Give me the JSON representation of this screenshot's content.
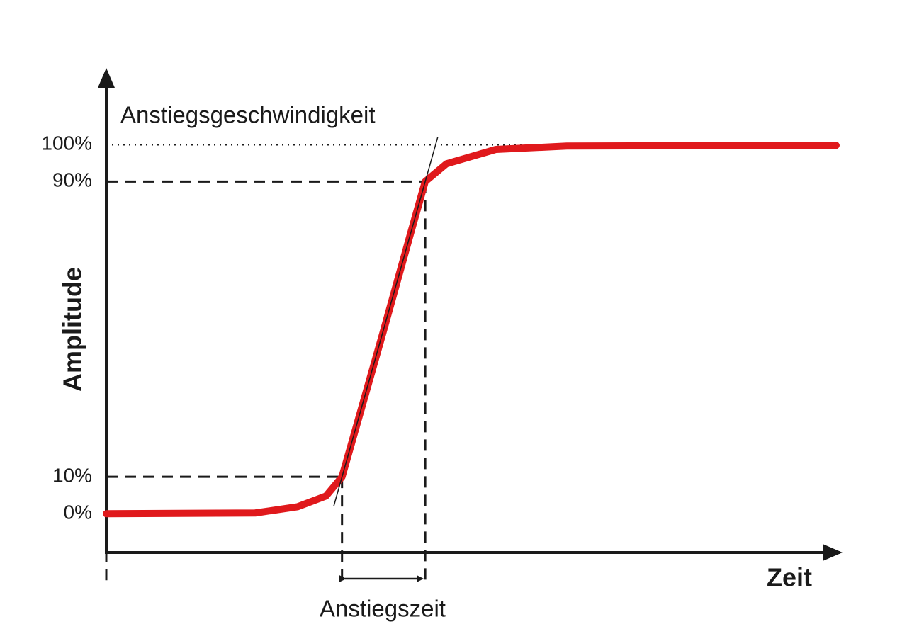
{
  "chart_data": {
    "type": "line",
    "x_label": "Zeit",
    "y_label": "Amplitude",
    "annotations": [
      "Anstiegsgeschwindigkeit",
      "Anstiegszeit"
    ],
    "x": [
      0,
      20.4,
      26.2,
      30.1,
      32.3,
      37.9,
      41.7,
      43.7,
      46.6,
      53.4,
      63.1,
      100
    ],
    "series": [
      {
        "color": "#e0191c",
        "values": [
          0,
          0.2,
          1.9,
          4.8,
          10,
          49,
          76,
          90,
          94.8,
          98.7,
          99.6,
          99.8
        ]
      }
    ],
    "xlim": [
      0,
      100
    ],
    "ylim": [
      -10.5,
      120
    ],
    "yticks": [
      {
        "value": 0,
        "label": "0%"
      },
      {
        "value": 10,
        "label": "10%"
      },
      {
        "value": 90,
        "label": "90%"
      },
      {
        "value": 100,
        "label": "100%"
      }
    ]
  }
}
